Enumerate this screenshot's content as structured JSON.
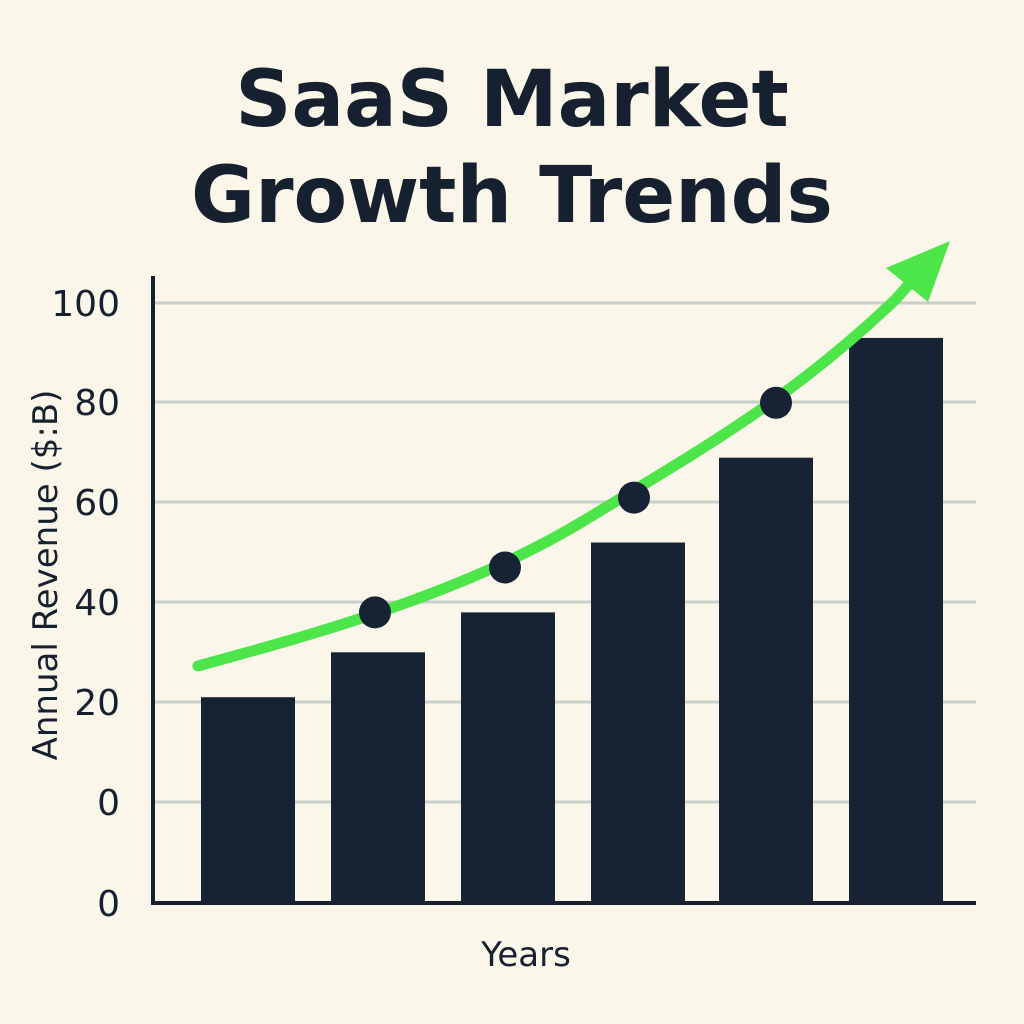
{
  "title": {
    "line1": "SaaS Market",
    "line2": "Growth Trends"
  },
  "chart_data": {
    "type": "bar",
    "title": "SaaS Market Growth Trends",
    "xlabel": "Years",
    "ylabel": "Annual Revenue ($:B)",
    "y_tick_labels": [
      "100",
      "80",
      "60",
      "40",
      "20",
      "0",
      "0"
    ],
    "categories": [
      "",
      "",
      "",
      "",
      "",
      ""
    ],
    "series": [
      {
        "values": [
          21,
          30,
          38,
          52,
          69,
          93
        ]
      }
    ],
    "trend": {
      "description": "green upward arrow curve",
      "start_value": 28,
      "markers": [
        38,
        47,
        61,
        80
      ],
      "end_value": 112
    },
    "ylim": [
      0,
      100
    ],
    "grid": true,
    "legend": "none",
    "colors": {
      "bar": "#172235",
      "trend": "#4ce64a",
      "marker": "#172235",
      "grid": "#c9cfc9",
      "axis": "#17202e",
      "background": "#fbf6ea"
    }
  }
}
